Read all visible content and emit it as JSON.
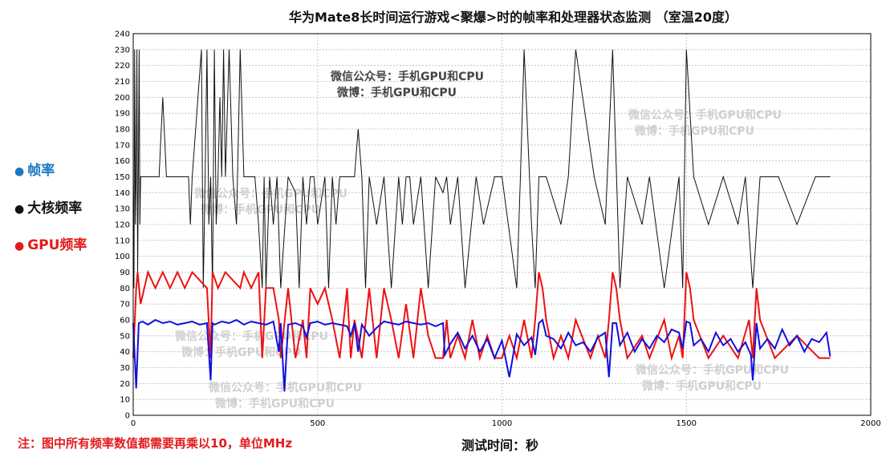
{
  "chart_data": {
    "type": "line",
    "title": "华为Mate8长时间运行游戏<聚爆>时的帧率和处理器状态监测 （室温20度）",
    "xlabel": "测试时间：秒",
    "ylabel": "",
    "xlim": [
      0,
      2000
    ],
    "ylim": [
      0,
      240
    ],
    "xticks": [
      "0",
      "500",
      "1000",
      "1500",
      "2000"
    ],
    "yticks": [
      "0",
      "10",
      "20",
      "30",
      "40",
      "50",
      "60",
      "70",
      "80",
      "90",
      "100",
      "110",
      "120",
      "130",
      "140",
      "150",
      "160",
      "170",
      "180",
      "190",
      "200",
      "210",
      "220",
      "230",
      "240"
    ],
    "grid": true,
    "legend_position": "left",
    "note": "注：图中所有频率数值都需要再乘以10，单位MHz",
    "watermarks": [
      {
        "line1": "微信公众号：手机GPU和CPU",
        "line2": "微博：手机GPU和CPU",
        "style": "dark"
      },
      {
        "line1": "微信公众号：手机GPU和CPU",
        "line2": "微博：手机GPU和CPU",
        "style": "light"
      },
      {
        "line1": "微信公众号：手机GPU和CPU",
        "line2": "微博：手机GPU和CPU",
        "style": "light"
      },
      {
        "line1": "微信公众号：手机GPU和CPU",
        "line2": "微博：手机GPU和CPU",
        "style": "light"
      },
      {
        "line1": "微信公众号：手机GPU和CPU",
        "line2": "微博：手机GPU和CPU",
        "style": "light"
      },
      {
        "line1": "微信公众号：手机GPU和CPU",
        "line2": "微博：手机GPU和CPU",
        "style": "light"
      }
    ],
    "series": [
      {
        "name": "帧率",
        "color": "#1010dd",
        "x": [
          0,
          8,
          15,
          25,
          40,
          60,
          80,
          100,
          120,
          140,
          160,
          180,
          200,
          210,
          215,
          220,
          240,
          260,
          280,
          300,
          320,
          340,
          360,
          380,
          395,
          400,
          410,
          420,
          440,
          460,
          470,
          480,
          500,
          520,
          540,
          560,
          580,
          590,
          600,
          610,
          620,
          640,
          660,
          680,
          700,
          720,
          740,
          760,
          780,
          800,
          820,
          840,
          845,
          860,
          880,
          900,
          920,
          940,
          960,
          980,
          1000,
          1020,
          1040,
          1060,
          1080,
          1090,
          1100,
          1110,
          1120,
          1140,
          1160,
          1180,
          1200,
          1220,
          1240,
          1260,
          1280,
          1290,
          1300,
          1310,
          1320,
          1340,
          1360,
          1380,
          1400,
          1420,
          1440,
          1460,
          1480,
          1490,
          1500,
          1510,
          1520,
          1540,
          1560,
          1580,
          1600,
          1620,
          1640,
          1660,
          1675,
          1680,
          1690,
          1700,
          1720,
          1740,
          1760,
          1780,
          1800,
          1820,
          1840,
          1860,
          1880,
          1890
        ],
        "y": [
          58,
          17,
          58,
          59,
          57,
          60,
          58,
          59,
          57,
          58,
          59,
          57,
          58,
          22,
          58,
          57,
          59,
          58,
          60,
          57,
          59,
          58,
          57,
          59,
          40,
          58,
          15,
          57,
          58,
          56,
          49,
          58,
          59,
          57,
          58,
          57,
          56,
          50,
          58,
          40,
          57,
          50,
          55,
          59,
          58,
          57,
          59,
          58,
          57,
          58,
          56,
          58,
          38,
          45,
          52,
          42,
          50,
          40,
          48,
          36,
          47,
          24,
          51,
          44,
          49,
          38,
          58,
          60,
          50,
          48,
          42,
          52,
          44,
          46,
          40,
          49,
          52,
          24,
          58,
          58,
          44,
          52,
          40,
          48,
          42,
          50,
          46,
          54,
          52,
          42,
          59,
          58,
          44,
          48,
          40,
          52,
          44,
          48,
          40,
          46,
          38,
          22,
          58,
          42,
          48,
          42,
          54,
          44,
          50,
          40,
          48,
          46,
          52,
          37
        ]
      },
      {
        "name": "大核频率",
        "color": "#111111",
        "x": [
          0,
          2,
          4,
          6,
          8,
          10,
          12,
          14,
          16,
          18,
          20,
          40,
          70,
          80,
          90,
          100,
          150,
          155,
          160,
          185,
          190,
          195,
          200,
          205,
          210,
          215,
          220,
          225,
          230,
          235,
          240,
          245,
          250,
          260,
          270,
          280,
          290,
          300,
          330,
          340,
          350,
          355,
          360,
          370,
          380,
          390,
          400,
          420,
          440,
          450,
          460,
          470,
          480,
          490,
          500,
          520,
          530,
          540,
          550,
          560,
          600,
          610,
          620,
          630,
          640,
          660,
          680,
          700,
          720,
          730,
          740,
          750,
          760,
          780,
          800,
          820,
          840,
          850,
          860,
          880,
          900,
          930,
          950,
          980,
          1000,
          1040,
          1050,
          1060,
          1080,
          1090,
          1100,
          1110,
          1120,
          1160,
          1180,
          1200,
          1250,
          1280,
          1300,
          1320,
          1340,
          1380,
          1400,
          1440,
          1480,
          1490,
          1500,
          1520,
          1560,
          1600,
          1640,
          1660,
          1680,
          1700,
          1750,
          1800,
          1850,
          1890
        ],
        "y": [
          150,
          80,
          230,
          120,
          150,
          230,
          90,
          150,
          230,
          120,
          150,
          150,
          150,
          200,
          150,
          150,
          150,
          120,
          150,
          230,
          80,
          150,
          230,
          120,
          150,
          80,
          230,
          120,
          150,
          200,
          150,
          230,
          150,
          230,
          150,
          120,
          230,
          150,
          150,
          120,
          80,
          150,
          80,
          150,
          120,
          150,
          80,
          150,
          140,
          80,
          150,
          120,
          150,
          150,
          120,
          150,
          80,
          150,
          120,
          150,
          150,
          180,
          150,
          80,
          150,
          120,
          150,
          80,
          150,
          120,
          150,
          150,
          120,
          150,
          80,
          150,
          140,
          150,
          120,
          150,
          80,
          150,
          120,
          150,
          150,
          80,
          150,
          230,
          120,
          80,
          150,
          150,
          150,
          120,
          150,
          230,
          150,
          120,
          230,
          80,
          150,
          120,
          150,
          80,
          150,
          80,
          230,
          150,
          120,
          150,
          120,
          150,
          80,
          150,
          150,
          120,
          150,
          150
        ]
      },
      {
        "name": "GPU频率",
        "color": "#ee1111",
        "x": [
          0,
          8,
          12,
          20,
          40,
          60,
          80,
          100,
          120,
          140,
          160,
          180,
          200,
          210,
          215,
          230,
          250,
          270,
          290,
          300,
          320,
          340,
          350,
          360,
          380,
          395,
          400,
          420,
          440,
          460,
          470,
          480,
          500,
          520,
          540,
          560,
          580,
          590,
          600,
          620,
          640,
          660,
          680,
          700,
          720,
          740,
          760,
          780,
          800,
          820,
          840,
          850,
          860,
          880,
          900,
          920,
          940,
          960,
          980,
          1000,
          1020,
          1040,
          1060,
          1080,
          1090,
          1100,
          1110,
          1120,
          1140,
          1160,
          1180,
          1200,
          1240,
          1260,
          1280,
          1290,
          1300,
          1310,
          1320,
          1340,
          1380,
          1400,
          1440,
          1460,
          1480,
          1490,
          1500,
          1510,
          1520,
          1560,
          1600,
          1640,
          1670,
          1680,
          1690,
          1700,
          1740,
          1800,
          1860,
          1890
        ],
        "y": [
          36,
          80,
          90,
          70,
          90,
          80,
          90,
          80,
          90,
          80,
          90,
          85,
          80,
          36,
          90,
          80,
          90,
          85,
          80,
          90,
          80,
          90,
          36,
          80,
          80,
          60,
          36,
          80,
          36,
          60,
          36,
          80,
          70,
          80,
          60,
          36,
          80,
          36,
          60,
          36,
          80,
          36,
          80,
          60,
          36,
          70,
          36,
          80,
          50,
          36,
          36,
          60,
          36,
          50,
          36,
          60,
          36,
          50,
          36,
          36,
          50,
          36,
          60,
          36,
          60,
          90,
          80,
          60,
          36,
          50,
          36,
          60,
          36,
          50,
          36,
          60,
          90,
          80,
          60,
          36,
          50,
          36,
          60,
          36,
          50,
          36,
          90,
          80,
          60,
          36,
          50,
          36,
          60,
          36,
          80,
          60,
          36,
          50,
          36,
          36
        ]
      }
    ]
  }
}
